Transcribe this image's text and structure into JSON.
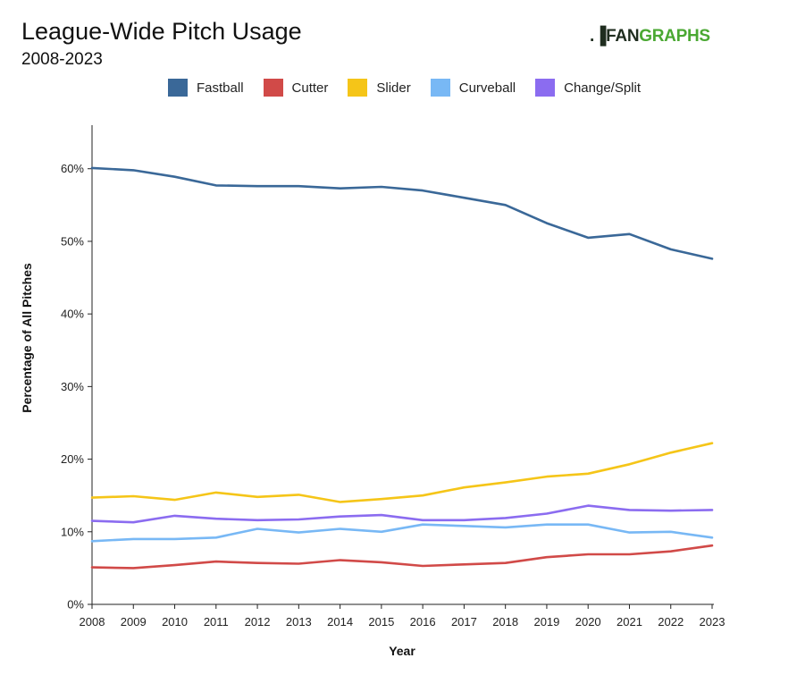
{
  "header": {
    "title": "League-Wide Pitch Usage",
    "subtitle": "2008-2023"
  },
  "logo": {
    "mark": ".▐",
    "fan": "FAN",
    "graphs": "GRAPHS"
  },
  "chart_data": {
    "type": "line",
    "title": "League-Wide Pitch Usage",
    "subtitle": "2008-2023",
    "xlabel": "Year",
    "ylabel": "Percentage of All Pitches",
    "x": [
      2008,
      2009,
      2010,
      2011,
      2012,
      2013,
      2014,
      2015,
      2016,
      2017,
      2018,
      2019,
      2020,
      2021,
      2022,
      2023
    ],
    "ylim": [
      0,
      66
    ],
    "yticks": [
      0,
      10,
      20,
      30,
      40,
      50,
      60
    ],
    "ytick_labels": [
      "0%",
      "10%",
      "20%",
      "30%",
      "40%",
      "50%",
      "60%"
    ],
    "grid": false,
    "legend_position": "top",
    "series": [
      {
        "name": "Fastball",
        "color": "#3a6898",
        "values": [
          60.1,
          59.8,
          58.9,
          57.7,
          57.6,
          57.6,
          57.3,
          57.5,
          57.0,
          56.0,
          55.0,
          52.5,
          50.5,
          51.0,
          48.9,
          47.6
        ]
      },
      {
        "name": "Cutter",
        "color": "#d14a48",
        "values": [
          5.1,
          5.0,
          5.4,
          5.9,
          5.7,
          5.6,
          6.1,
          5.8,
          5.3,
          5.5,
          5.7,
          6.5,
          6.9,
          6.9,
          7.3,
          8.1
        ]
      },
      {
        "name": "Slider",
        "color": "#f5c518",
        "values": [
          14.7,
          14.9,
          14.4,
          15.4,
          14.8,
          15.1,
          14.1,
          14.5,
          15.0,
          16.1,
          16.8,
          17.6,
          18.0,
          19.3,
          20.9,
          22.2
        ]
      },
      {
        "name": "Curveball",
        "color": "#78b8f5",
        "values": [
          8.7,
          9.0,
          9.0,
          9.2,
          10.4,
          9.9,
          10.4,
          10.0,
          11.0,
          10.8,
          10.6,
          11.0,
          11.0,
          9.9,
          10.0,
          9.2
        ]
      },
      {
        "name": "Change/Split",
        "color": "#8b6cf0",
        "values": [
          11.5,
          11.3,
          12.2,
          11.8,
          11.6,
          11.7,
          12.1,
          12.3,
          11.6,
          11.6,
          11.9,
          12.5,
          13.6,
          13.0,
          12.9,
          13.0
        ]
      }
    ]
  }
}
